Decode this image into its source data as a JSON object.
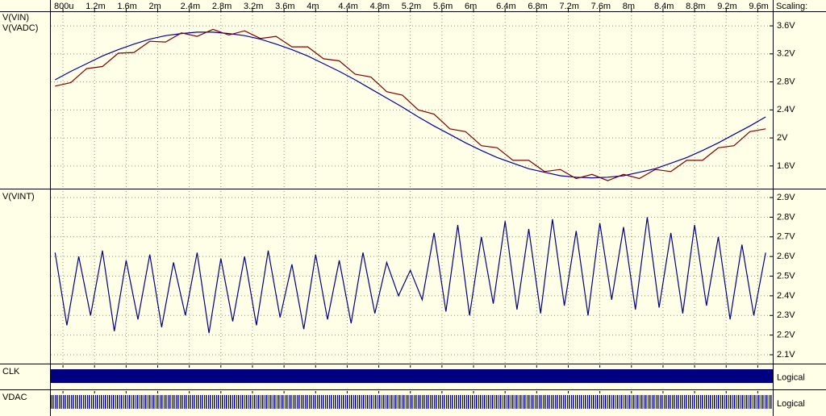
{
  "chart_data": [
    {
      "type": "line",
      "scaling_label": "Scaling:",
      "xlim": [
        0.000636,
        0.00979
      ],
      "xticks": [
        {
          "value": 0.0008,
          "label": "800u"
        },
        {
          "value": 0.0012,
          "label": "1.2m"
        },
        {
          "value": 0.0016,
          "label": "1.6m"
        },
        {
          "value": 0.002,
          "label": "2m"
        },
        {
          "value": 0.0024,
          "label": "2.4m"
        },
        {
          "value": 0.0028,
          "label": "2.8m"
        },
        {
          "value": 0.0032,
          "label": "3.2m"
        },
        {
          "value": 0.0036,
          "label": "3.6m"
        },
        {
          "value": 0.004,
          "label": "4m"
        },
        {
          "value": 0.0044,
          "label": "4.4m"
        },
        {
          "value": 0.0048,
          "label": "4.8m"
        },
        {
          "value": 0.0052,
          "label": "5.2m"
        },
        {
          "value": 0.0056,
          "label": "5.6m"
        },
        {
          "value": 0.006,
          "label": "6m"
        },
        {
          "value": 0.0064,
          "label": "6.4m"
        },
        {
          "value": 0.0068,
          "label": "6.8m"
        },
        {
          "value": 0.0072,
          "label": "7.2m"
        },
        {
          "value": 0.0076,
          "label": "7.6m"
        },
        {
          "value": 0.008,
          "label": "8m"
        },
        {
          "value": 0.0084,
          "label": "8.4m"
        },
        {
          "value": 0.0088,
          "label": "8.8m"
        },
        {
          "value": 0.0092,
          "label": "9.2m"
        },
        {
          "value": 0.0096,
          "label": "9.6m"
        }
      ],
      "ylim": [
        1.276,
        3.808
      ],
      "yticks": [
        {
          "value": 3.6,
          "label": "3.6V"
        },
        {
          "value": 3.2,
          "label": "3.2V"
        },
        {
          "value": 2.8,
          "label": "2.8V"
        },
        {
          "value": 2.4,
          "label": "2.4V"
        },
        {
          "value": 2,
          "label": "2V"
        },
        {
          "value": 1.6,
          "label": "1.6V"
        }
      ],
      "grid": true,
      "x": [
        0.0007,
        0.0009,
        0.0011,
        0.0013,
        0.0015,
        0.0017,
        0.0019,
        0.0021,
        0.0023,
        0.0025,
        0.0027,
        0.0029,
        0.0031,
        0.0033,
        0.0035,
        0.0037,
        0.0039,
        0.0041,
        0.0043,
        0.0045,
        0.0047,
        0.0049,
        0.0051,
        0.0053,
        0.0055,
        0.0057,
        0.0059,
        0.0061,
        0.0063,
        0.0065,
        0.0067,
        0.0069,
        0.0071,
        0.0073,
        0.0075,
        0.0077,
        0.0079,
        0.0081,
        0.0083,
        0.0085,
        0.0087,
        0.0089,
        0.0091,
        0.0093,
        0.0095,
        0.0097
      ],
      "series": [
        {
          "name": "V(VIN)",
          "color": "#0000a0",
          "values": [
            2.83,
            2.95,
            3.06,
            3.17,
            3.26,
            3.34,
            3.41,
            3.46,
            3.49,
            3.51,
            3.51,
            3.49,
            3.46,
            3.41,
            3.34,
            3.26,
            3.17,
            3.06,
            2.95,
            2.83,
            2.7,
            2.57,
            2.44,
            2.3,
            2.17,
            2.05,
            1.93,
            1.82,
            1.72,
            1.64,
            1.56,
            1.51,
            1.46,
            1.44,
            1.43,
            1.44,
            1.46,
            1.51,
            1.56,
            1.64,
            1.72,
            1.82,
            1.93,
            2.05,
            2.17,
            2.3
          ]
        },
        {
          "name": "V(VADC)",
          "color": "#800000",
          "values": [
            2.74,
            2.79,
            2.99,
            3.02,
            3.21,
            3.22,
            3.38,
            3.37,
            3.5,
            3.45,
            3.55,
            3.47,
            3.53,
            3.42,
            3.45,
            3.3,
            3.3,
            3.13,
            3.1,
            2.91,
            2.87,
            2.66,
            2.61,
            2.4,
            2.34,
            2.13,
            2.09,
            1.89,
            1.86,
            1.68,
            1.68,
            1.52,
            1.55,
            1.42,
            1.48,
            1.39,
            1.48,
            1.42,
            1.55,
            1.52,
            1.68,
            1.68,
            1.86,
            1.89,
            2.09,
            2.13
          ]
        }
      ]
    },
    {
      "type": "line",
      "ylim": [
        2.055,
        2.937
      ],
      "yticks": [
        {
          "value": 2.9,
          "label": "2.9V"
        },
        {
          "value": 2.8,
          "label": "2.8V"
        },
        {
          "value": 2.7,
          "label": "2.7V"
        },
        {
          "value": 2.6,
          "label": "2.6V"
        },
        {
          "value": 2.5,
          "label": "2.5V"
        },
        {
          "value": 2.4,
          "label": "2.4V"
        },
        {
          "value": 2.3,
          "label": "2.3V"
        },
        {
          "value": 2.2,
          "label": "2.2V"
        },
        {
          "value": 2.1,
          "label": "2.1V"
        }
      ],
      "grid": true,
      "x": [
        0.0007,
        0.00085,
        0.001,
        0.00115,
        0.0013,
        0.00145,
        0.0016,
        0.00175,
        0.0019,
        0.00205,
        0.0022,
        0.00235,
        0.0025,
        0.00265,
        0.0028,
        0.00295,
        0.0031,
        0.00325,
        0.0034,
        0.00355,
        0.0037,
        0.00385,
        0.004,
        0.00415,
        0.0043,
        0.00445,
        0.0046,
        0.00475,
        0.0049,
        0.00505,
        0.0052,
        0.00535,
        0.0055,
        0.00565,
        0.0058,
        0.00595,
        0.0061,
        0.00625,
        0.0064,
        0.00655,
        0.0067,
        0.00685,
        0.007,
        0.00715,
        0.0073,
        0.00745,
        0.0076,
        0.00775,
        0.0079,
        0.00805,
        0.0082,
        0.00835,
        0.0085,
        0.00865,
        0.0088,
        0.00895,
        0.0091,
        0.00925,
        0.0094,
        0.00955,
        0.0097
      ],
      "series": [
        {
          "name": "V(VINT)",
          "color": "#000080",
          "values": [
            2.62,
            2.25,
            2.6,
            2.3,
            2.63,
            2.22,
            2.58,
            2.28,
            2.61,
            2.24,
            2.57,
            2.3,
            2.62,
            2.21,
            2.59,
            2.27,
            2.6,
            2.25,
            2.63,
            2.29,
            2.56,
            2.23,
            2.61,
            2.28,
            2.58,
            2.26,
            2.62,
            2.31,
            2.57,
            2.4,
            2.53,
            2.38,
            2.72,
            2.32,
            2.76,
            2.3,
            2.7,
            2.36,
            2.78,
            2.33,
            2.74,
            2.31,
            2.79,
            2.35,
            2.73,
            2.3,
            2.77,
            2.38,
            2.75,
            2.33,
            2.8,
            2.34,
            2.72,
            2.31,
            2.76,
            2.35,
            2.7,
            2.28,
            2.66,
            2.3,
            2.62
          ]
        }
      ]
    },
    {
      "type": "digital",
      "name": "CLK",
      "scale_label": "Logical"
    },
    {
      "type": "digital",
      "name": "VDAC",
      "scale_label": "Logical"
    }
  ]
}
